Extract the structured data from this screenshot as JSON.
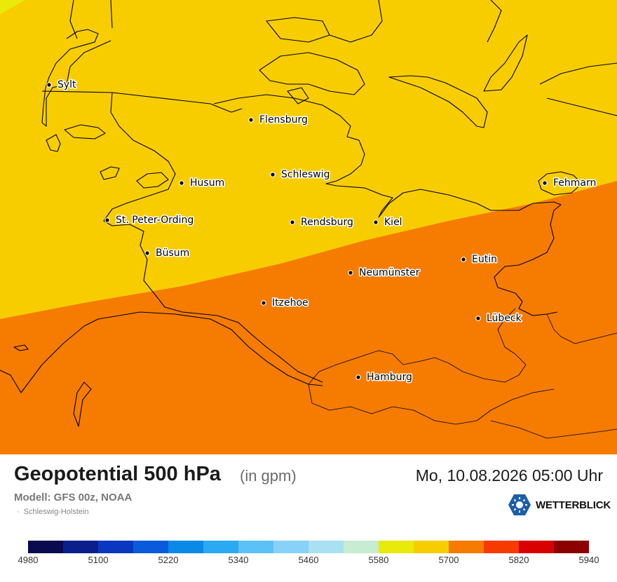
{
  "map": {
    "title": "Geopotential 500 hPa",
    "unit": "(in gpm)",
    "datetime": "Mo, 10.08.2026 05:00 Uhr",
    "model": "Modell: GFS 00z, NOAA",
    "region": "Schleswig-Holstein",
    "colors": {
      "band_5580_5640": "#eaea0a",
      "band_5640_5700": "#f7cd00",
      "band_5700_5760": "#f57c00",
      "coastline": "#000000"
    },
    "cities": [
      {
        "name": "Sylt"
      },
      {
        "name": "Flensburg"
      },
      {
        "name": "Schleswig"
      },
      {
        "name": "Husum"
      },
      {
        "name": "St. Peter-Ording"
      },
      {
        "name": "Rendsburg"
      },
      {
        "name": "Kiel"
      },
      {
        "name": "Büsum"
      },
      {
        "name": "Neumünster"
      },
      {
        "name": "Eutin"
      },
      {
        "name": "Fehmarn"
      },
      {
        "name": "Itzehoe"
      },
      {
        "name": "Lübeck"
      },
      {
        "name": "Hamburg"
      }
    ]
  },
  "brand": {
    "name": "WETTERBLICK",
    "icon": "sun-logo-icon"
  },
  "legend": {
    "colors": [
      "#0a0a4f",
      "#0a1f8a",
      "#0a37c0",
      "#0a5bdc",
      "#0a8ae6",
      "#2ba9f2",
      "#5cc1f7",
      "#88d1f8",
      "#a9e0f2",
      "#c7ecd1",
      "#eaea0a",
      "#f7cd00",
      "#f57c00",
      "#f73a00",
      "#d90000",
      "#8c0000"
    ],
    "labels": [
      "4980",
      "5100",
      "5220",
      "5340",
      "5460",
      "5580",
      "5700",
      "5820",
      "5940"
    ]
  }
}
